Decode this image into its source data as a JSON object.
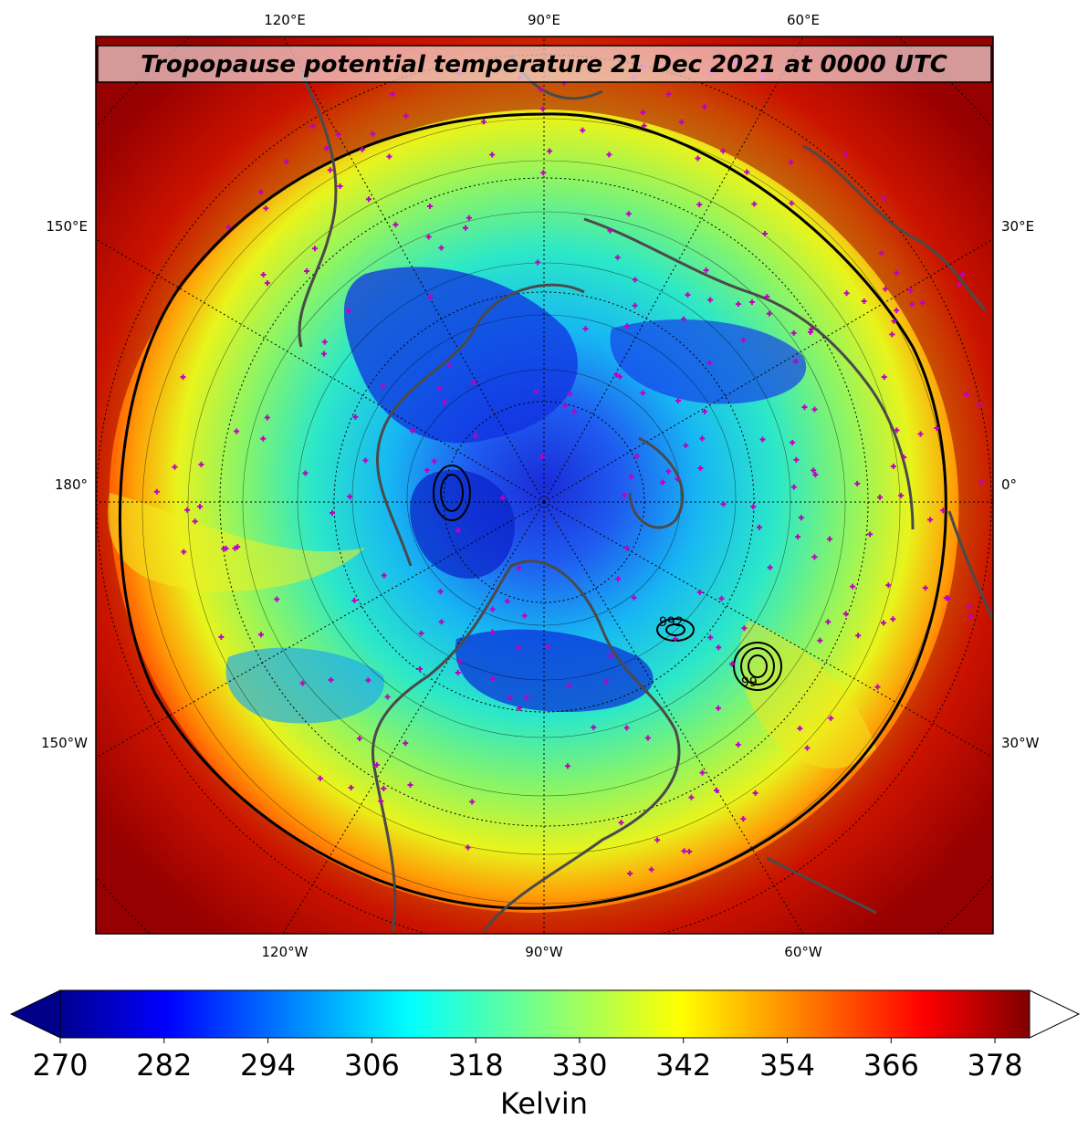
{
  "title": "Tropopause potential temperature 21 Dec 2021 at 0000 UTC",
  "map": {
    "projection": "north-polar-stereographic",
    "center_longitude": "90°W",
    "lon_labels": {
      "top": [
        "120°E",
        "90°E",
        "60°E"
      ],
      "bottom": [
        "120°W",
        "90°W",
        "60°W"
      ],
      "left": [
        "150°E",
        "180°",
        "150°W"
      ],
      "right": [
        "30°E",
        "0°",
        "30°W"
      ]
    },
    "pressure_contour_labels": [
      "992",
      "99"
    ],
    "marker_color": "#c000c0",
    "coastline_color": "#4a4a4a"
  },
  "colorbar": {
    "label": "Kelvin",
    "ticks": [
      "270",
      "282",
      "294",
      "306",
      "318",
      "330",
      "342",
      "354",
      "366",
      "378"
    ],
    "min": 270,
    "max": 382,
    "extend_low_color": "#00008b",
    "extend_high_color": "#ffffff",
    "colormap": "jet"
  }
}
